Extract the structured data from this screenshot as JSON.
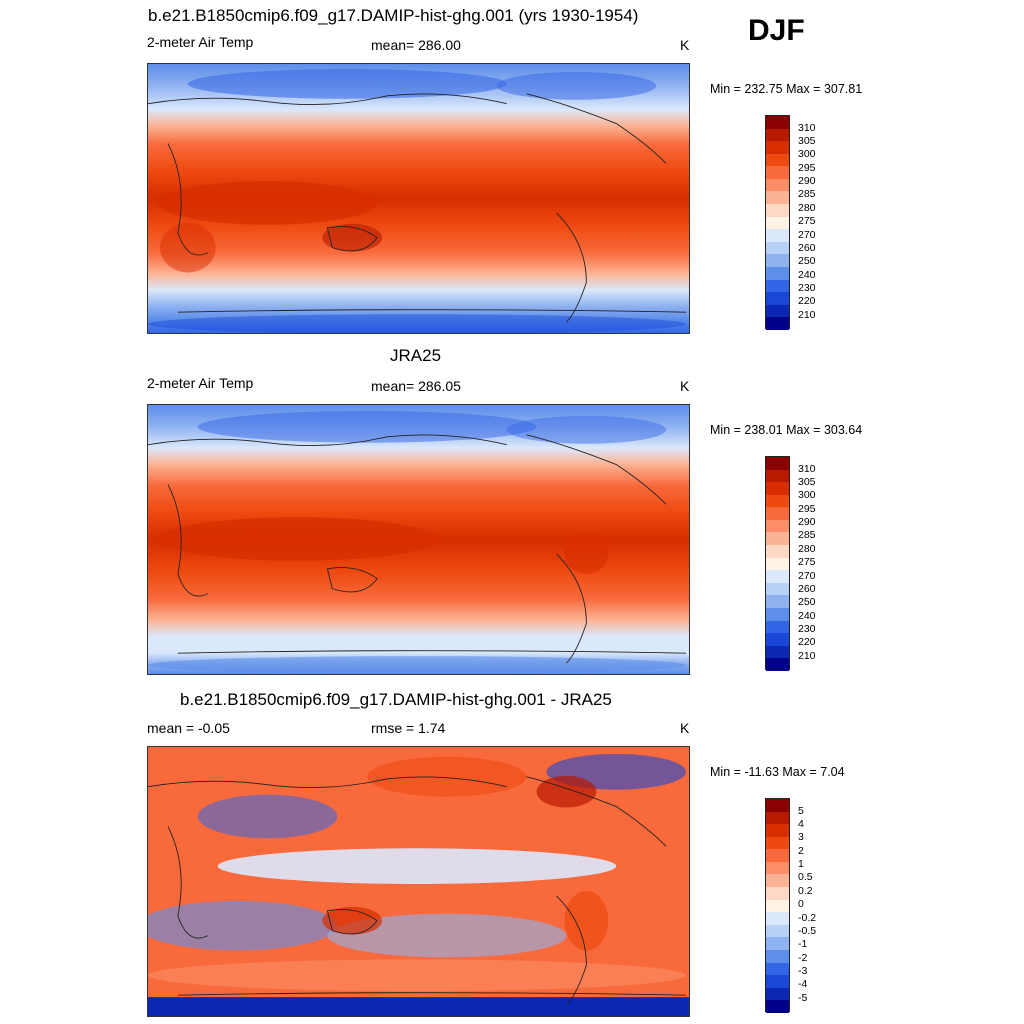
{
  "season": "DJF",
  "panels": [
    {
      "title": "b.e21.B1850cmip6.f09_g17.DAMIP-hist-ghg.001 (yrs 1930-1954)",
      "left_label": "2-meter Air Temp",
      "center_label": "mean= 286.00",
      "right_label": "K",
      "minmax": "Min = 232.75 Max = 307.81",
      "colorbar": {
        "labels": [
          "310",
          "305",
          "300",
          "295",
          "290",
          "285",
          "280",
          "275",
          "270",
          "260",
          "250",
          "240",
          "230",
          "220",
          "210"
        ],
        "colors": [
          "#8b0000",
          "#b81a00",
          "#d72d00",
          "#ee4a10",
          "#f86a3c",
          "#fb8e66",
          "#fcb395",
          "#fdd8c4",
          "#fff3e6",
          "#dbe8fb",
          "#b8d0f6",
          "#8fb2f0",
          "#5d8eea",
          "#3366e6",
          "#1a47d6",
          "#0b27b4",
          "#00008b"
        ]
      }
    },
    {
      "title": "JRA25",
      "left_label": "2-meter Air Temp",
      "center_label": "mean= 286.05",
      "right_label": "K",
      "minmax": "Min = 238.01 Max = 303.64",
      "colorbar": {
        "labels": [
          "310",
          "305",
          "300",
          "295",
          "290",
          "285",
          "280",
          "275",
          "270",
          "260",
          "250",
          "240",
          "230",
          "220",
          "210"
        ],
        "colors": [
          "#8b0000",
          "#b81a00",
          "#d72d00",
          "#ee4a10",
          "#f86a3c",
          "#fb8e66",
          "#fcb395",
          "#fdd8c4",
          "#fff3e6",
          "#dbe8fb",
          "#b8d0f6",
          "#8fb2f0",
          "#5d8eea",
          "#3366e6",
          "#1a47d6",
          "#0b27b4",
          "#00008b"
        ]
      }
    },
    {
      "title": "b.e21.B1850cmip6.f09_g17.DAMIP-hist-ghg.001 - JRA25",
      "left_label": "mean =  -0.05",
      "center_label": "rmse =   1.74",
      "right_label": "K",
      "minmax": "Min = -11.63 Max =   7.04",
      "colorbar": {
        "labels": [
          "5",
          "4",
          "3",
          "2",
          "1",
          "0.5",
          "0.2",
          "0",
          "-0.2",
          "-0.5",
          "-1",
          "-2",
          "-3",
          "-4",
          "-5"
        ],
        "colors": [
          "#8b0000",
          "#b81a00",
          "#d72d00",
          "#ee4a10",
          "#f86a3c",
          "#fb8e66",
          "#fcb395",
          "#fdd8c4",
          "#fff3e6",
          "#dbe8fb",
          "#b8d0f6",
          "#8fb2f0",
          "#5d8eea",
          "#3366e6",
          "#1a47d6",
          "#0b27b4",
          "#00008b"
        ]
      }
    }
  ]
}
